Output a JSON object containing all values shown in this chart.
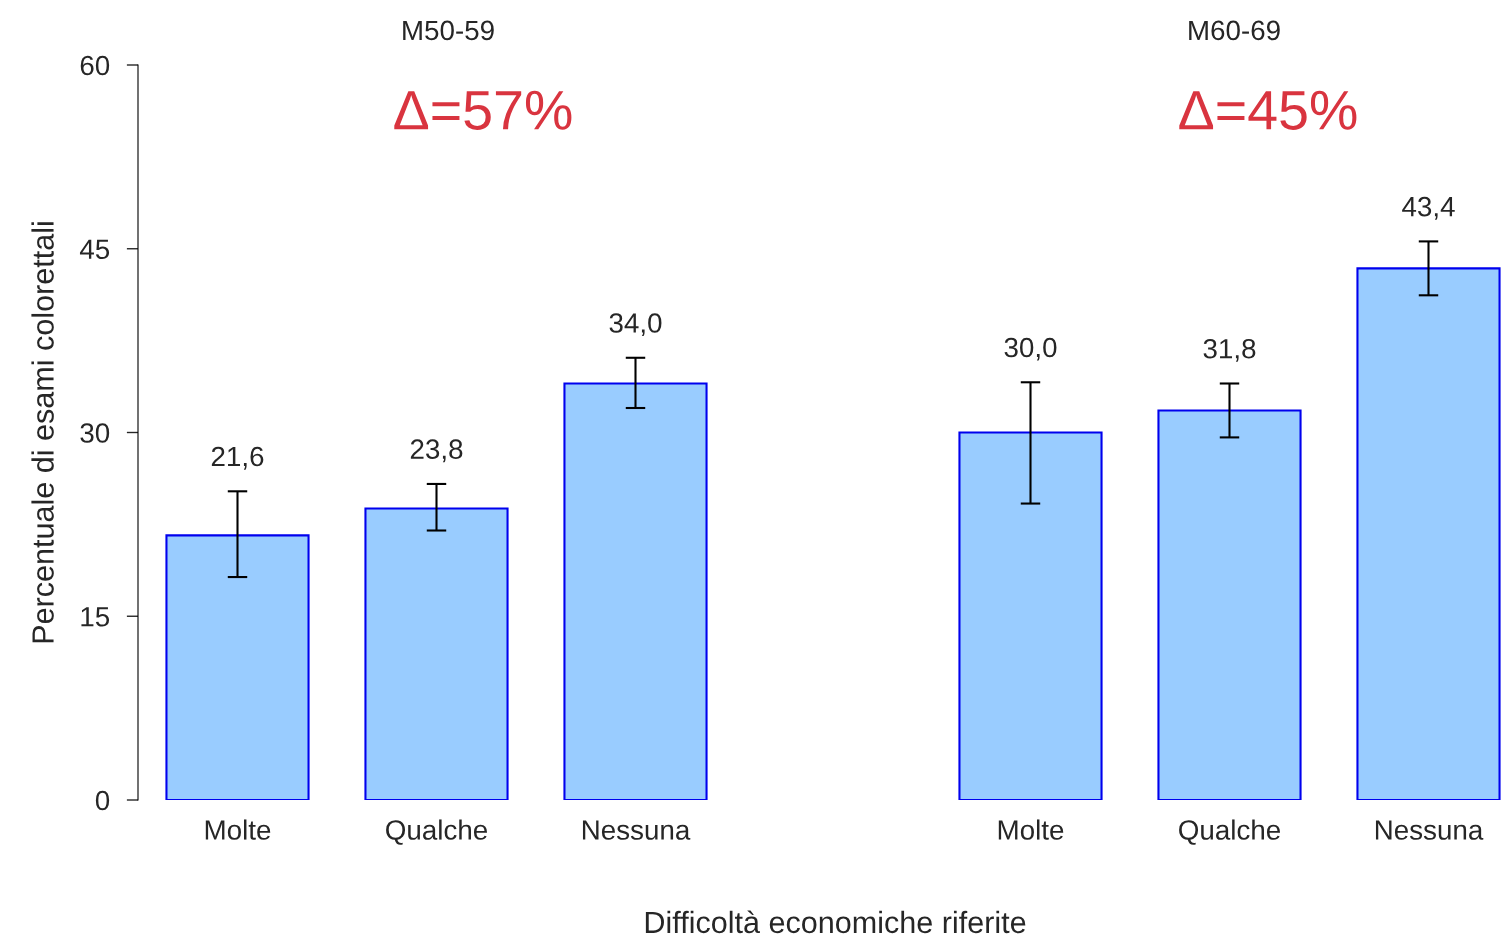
{
  "chart_data": [
    {
      "type": "bar",
      "title": "M50-59",
      "ylabel": "Percentuale di esami colorettali",
      "xlabel": "Difficoltà economiche riferite",
      "categories": [
        "Molte",
        "Qualche",
        "Nessuna"
      ],
      "series": [
        {
          "color": "#99ccff",
          "values": [
            21.6,
            23.8,
            34.0
          ],
          "errors": [
            [
              18.2,
              25.2
            ],
            [
              22.0,
              25.8
            ],
            [
              32.0,
              36.1
            ]
          ],
          "value_labels": [
            "21,6",
            "23,8",
            "34,0"
          ]
        }
      ],
      "ylim": [
        0,
        60
      ],
      "yticks": [
        0,
        15,
        30,
        45,
        60
      ],
      "annotations": [
        "Δ=57%"
      ],
      "grid": false,
      "legend": false
    },
    {
      "type": "bar",
      "title": "M60-69",
      "categories": [
        "Molte",
        "Qualche",
        "Nessuna"
      ],
      "series": [
        {
          "color": "#99ccff",
          "values": [
            30.0,
            31.8,
            43.4
          ],
          "errors": [
            [
              24.2,
              34.1
            ],
            [
              29.6,
              34.0
            ],
            [
              41.2,
              45.6
            ]
          ],
          "value_labels": [
            "30,0",
            "31,8",
            "43,4"
          ]
        }
      ],
      "ylim": [
        0,
        60
      ],
      "tick_labels": "x",
      "annotations": [
        "Δ=45%"
      ],
      "grid": false,
      "legend": false
    }
  ]
}
